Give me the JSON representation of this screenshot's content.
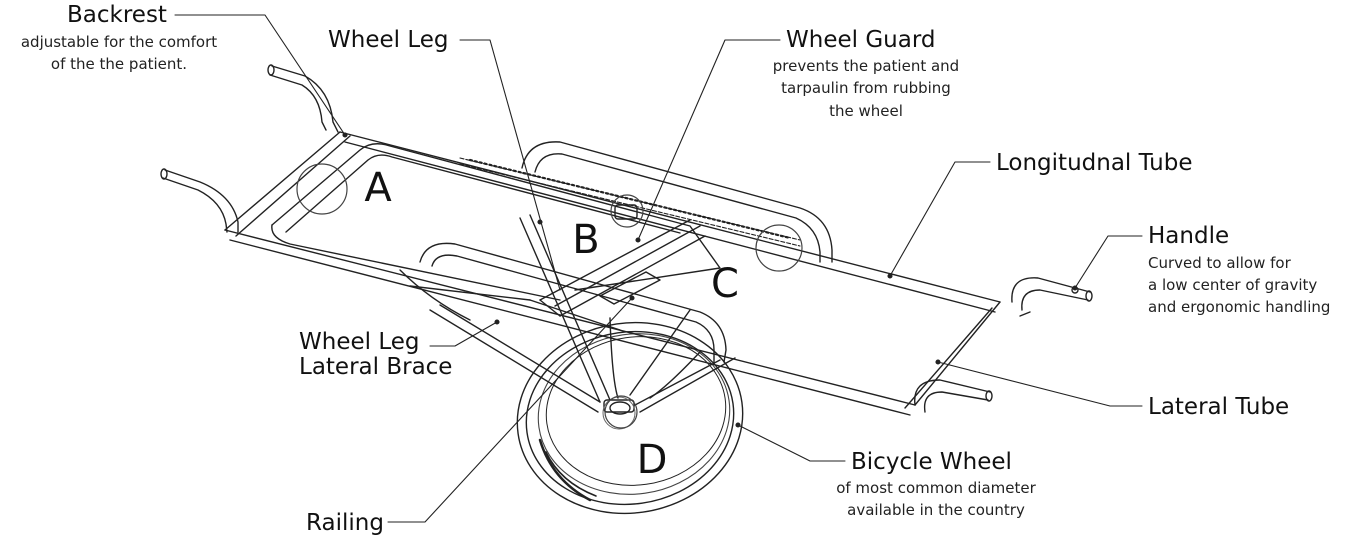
{
  "labels": {
    "backrest": {
      "title": "Backrest",
      "line1": "adjustable for the comfort",
      "line2": "of the the patient."
    },
    "wheel_leg": {
      "title": "Wheel Leg"
    },
    "wheel_guard": {
      "title": "Wheel Guard",
      "line1": "prevents the patient and",
      "line2": "tarpaulin from rubbing",
      "line3": "the wheel"
    },
    "longitudinal_tube": {
      "title": "Longitudnal Tube"
    },
    "handle": {
      "title": "Handle",
      "line1": "Curved to allow for",
      "line2": "a low center of gravity",
      "line3": "and ergonomic handling"
    },
    "lateral_brace": {
      "line1": "Wheel Leg",
      "line2": "Lateral Brace"
    },
    "lateral_tube": {
      "title": "Lateral Tube"
    },
    "bicycle_wheel": {
      "title": "Bicycle Wheel",
      "line1": "of most common diameter",
      "line2": "available in the country"
    },
    "railing": {
      "title": "Railing"
    }
  },
  "callouts": {
    "a": "A",
    "b": "B",
    "c": "C",
    "d": "D"
  }
}
